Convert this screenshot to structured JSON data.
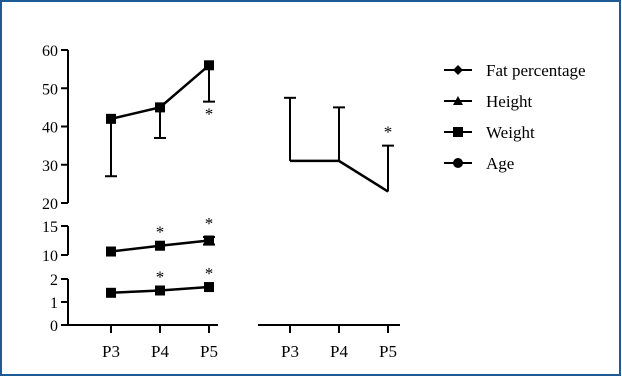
{
  "colors": {
    "frame_border": "#1f5a96",
    "ink": "#000000",
    "background": "#ffffff"
  },
  "chart_data": {
    "type": "line",
    "title": "",
    "xlabel": "",
    "ylabel": "",
    "grid": false,
    "legend": {
      "placement": "top-right",
      "entries": [
        {
          "label": "Fat percentage",
          "marker": "diamond"
        },
        {
          "label": "Height",
          "marker": "triangle"
        },
        {
          "label": "Weight",
          "marker": "square"
        },
        {
          "label": "Age",
          "marker": "circle"
        }
      ]
    },
    "x_ticks": [
      "P3",
      "P4",
      "P5",
      "P3",
      "P4",
      "P5"
    ],
    "y_axis": {
      "segments": [
        {
          "ylim": [
            0,
            2
          ],
          "ticks": [
            0,
            1,
            2
          ]
        },
        {
          "ylim": [
            10,
            15
          ],
          "ticks": [
            10,
            15
          ]
        },
        {
          "ylim": [
            20,
            60
          ],
          "ticks": [
            20,
            30,
            40,
            50,
            60
          ]
        }
      ]
    },
    "panels": [
      {
        "categories": [
          "P3",
          "P4",
          "P5"
        ],
        "series": [
          {
            "marker": "square",
            "values": [
              42,
              45,
              56
            ],
            "error_bars": [
              {
                "low": 27,
                "high": 42
              },
              {
                "low": 37,
                "high": 45
              },
              {
                "low": 46.5,
                "high": 56
              }
            ],
            "stars": [
              "",
              "",
              "*"
            ]
          },
          {
            "marker": "square",
            "values": [
              10.6,
              11.6,
              12.5
            ],
            "error_bars": [
              {
                "low": 10.6,
                "high": 10.6
              },
              {
                "low": 11.6,
                "high": 11.6
              },
              {
                "low": 11.8,
                "high": 13.1
              }
            ],
            "stars": [
              "",
              "*",
              "*"
            ]
          },
          {
            "marker": "square",
            "values": [
              1.4,
              1.5,
              1.65
            ],
            "error_bars": [
              {
                "low": 1.4,
                "high": 1.4
              },
              {
                "low": 1.5,
                "high": 1.5
              },
              {
                "low": 1.65,
                "high": 1.65
              }
            ],
            "stars": [
              "",
              "*",
              "*"
            ]
          }
        ]
      },
      {
        "categories": [
          "P3",
          "P4",
          "P5"
        ],
        "series": [
          {
            "marker": "diamond",
            "values": [
              31,
              31,
              23
            ],
            "error_bars": [
              {
                "low": 31,
                "high": 47.5
              },
              {
                "low": 31,
                "high": 45
              },
              {
                "low": 23,
                "high": 35
              }
            ],
            "stars": [
              "",
              "",
              "*"
            ]
          }
        ]
      }
    ]
  }
}
